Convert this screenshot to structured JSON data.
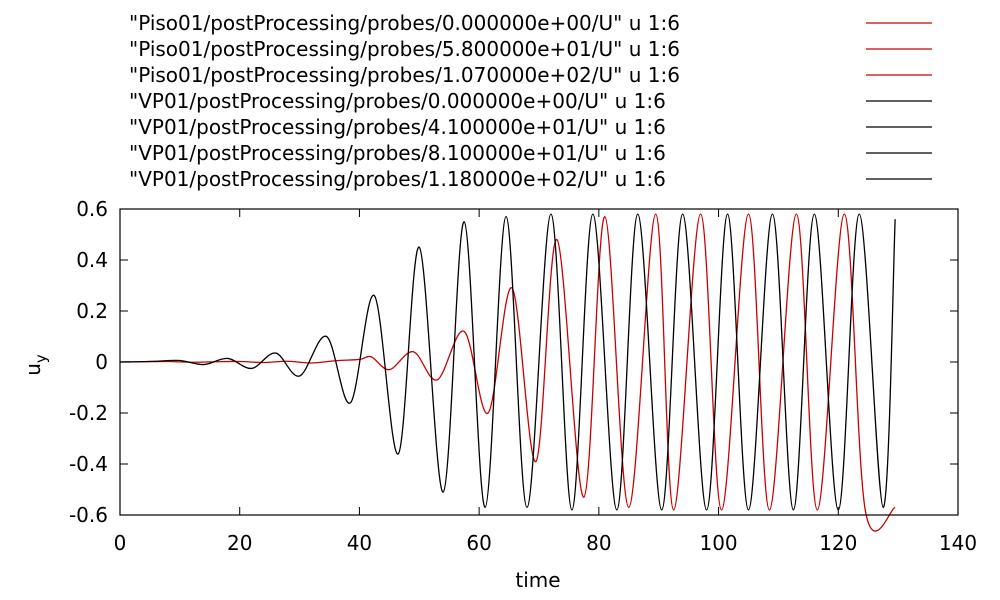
{
  "chart_data": {
    "type": "line",
    "title": "",
    "xlabel": "time",
    "ylabel_main": "u",
    "ylabel_sub": "y",
    "xlim": [
      0,
      140
    ],
    "ylim": [
      -0.6,
      0.6
    ],
    "xticks": [
      0,
      20,
      40,
      60,
      80,
      100,
      120,
      140
    ],
    "yticks": [
      -0.6,
      -0.4,
      -0.2,
      0,
      0.2,
      0.4,
      0.6
    ],
    "xtick_labels": [
      "0",
      "20",
      "40",
      "60",
      "80",
      "100",
      "120",
      "140"
    ],
    "ytick_labels": [
      "-0.6",
      "-0.4",
      "-0.2",
      "0",
      "0.2",
      "0.4",
      "0.6"
    ],
    "grid": false,
    "legend_position": "top",
    "colors": {
      "red": "#cc0000",
      "black": "#000000"
    },
    "series": [
      {
        "name": "\"Piso01/postProcessing/probes/0.000000e+00/U\" u 1:6",
        "color": "#cc0000",
        "x": [
          0,
          4,
          8,
          12,
          16,
          20,
          24,
          28,
          32,
          36,
          40,
          42,
          45,
          49,
          53,
          57.5,
          61.5,
          65.5,
          69.5,
          73,
          77.5,
          81,
          85,
          89.5,
          92.5,
          97,
          100.5,
          105,
          108.5,
          113,
          116.5,
          121,
          124.5,
          129.5
        ],
        "y": [
          0,
          0.001,
          0.002,
          -0.001,
          0.001,
          0.002,
          -0.002,
          0.003,
          -0.004,
          0.005,
          0.01,
          0.02,
          -0.03,
          0.04,
          -0.07,
          0.12,
          -0.2,
          0.29,
          -0.39,
          0.48,
          -0.53,
          0.57,
          -0.57,
          0.58,
          -0.58,
          0.58,
          -0.58,
          0.58,
          -0.58,
          0.58,
          -0.58,
          0.58,
          -0.58,
          -0.57
        ]
      },
      {
        "name": "\"Piso01/postProcessing/probes/5.800000e+01/U\" u 1:6",
        "color": "#cc0000",
        "x": [],
        "y": []
      },
      {
        "name": "\"Piso01/postProcessing/probes/1.070000e+02/U\" u 1:6",
        "color": "#cc0000",
        "x": [],
        "y": []
      },
      {
        "name": "\"VP01/postProcessing/probes/0.000000e+00/U\" u 1:6",
        "color": "#000000",
        "x": [
          0,
          3,
          6,
          10,
          14,
          18,
          22,
          26,
          30,
          34.5,
          38.5,
          42.5,
          46.5,
          50,
          54,
          57.5,
          61,
          64.5,
          68,
          72,
          75.5,
          79,
          83,
          86.5,
          90.5,
          94,
          98,
          101.5,
          105,
          109,
          112.5,
          116,
          120,
          123.5,
          127.5,
          129.5
        ],
        "y": [
          0,
          0.001,
          0.003,
          0.006,
          -0.01,
          0.014,
          -0.025,
          0.035,
          -0.055,
          0.1,
          -0.16,
          0.26,
          -0.36,
          0.45,
          -0.51,
          0.55,
          -0.57,
          0.57,
          -0.57,
          0.58,
          -0.58,
          0.58,
          -0.58,
          0.58,
          -0.58,
          0.58,
          -0.58,
          0.58,
          -0.58,
          0.58,
          -0.58,
          0.58,
          -0.58,
          0.58,
          -0.57,
          0.56
        ]
      },
      {
        "name": "\"VP01/postProcessing/probes/4.100000e+01/U\" u 1:6",
        "color": "#000000",
        "x": [],
        "y": []
      },
      {
        "name": "\"VP01/postProcessing/probes/8.100000e+01/U\" u 1:6",
        "color": "#000000",
        "x": [],
        "y": []
      },
      {
        "name": "\"VP01/postProcessing/probes/1.180000e+02/U\" u 1:6",
        "color": "#000000",
        "x": [],
        "y": []
      }
    ]
  }
}
